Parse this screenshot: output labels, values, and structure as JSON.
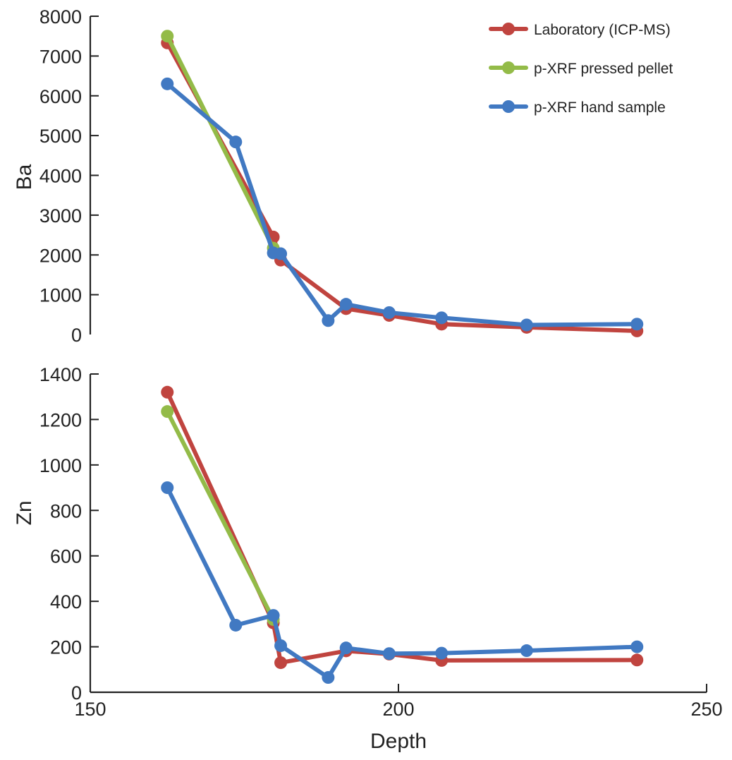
{
  "chart_data": {
    "type": "line",
    "xlabel": "Depth",
    "xlim": [
      150,
      250
    ],
    "xticks": [
      "150",
      "200",
      "250"
    ],
    "legend": {
      "placement": "top-right",
      "entries": [
        {
          "name": "Laboratory (ICP-MS)",
          "color": "#c0443f"
        },
        {
          "name": "p-XRF pressed pellet",
          "color": "#93bb48"
        },
        {
          "name": "p-XRF hand sample",
          "color": "#4179c2"
        }
      ]
    },
    "panels": [
      {
        "ylabel": "Ba",
        "ylim": [
          0,
          8000
        ],
        "yticks": [
          "0",
          "1000",
          "2000",
          "3000",
          "4000",
          "5000",
          "6000",
          "7000",
          "8000"
        ],
        "series": [
          {
            "name": "Laboratory (ICP-MS)",
            "color": "#c0443f",
            "x": [
              162.5,
              179.7,
              180.9,
              191.5,
              198.5,
              207.0,
              220.8,
              238.7
            ],
            "y": [
              7330,
              2450,
              1870,
              650,
              480,
              260,
              180,
              90
            ]
          },
          {
            "name": "p-XRF pressed pellet",
            "color": "#93bb48",
            "x": [
              162.5,
              179.7
            ],
            "y": [
              7500,
              2170
            ]
          },
          {
            "name": "p-XRF hand sample",
            "color": "#4179c2",
            "x": [
              162.5,
              173.6,
              179.7,
              180.9,
              188.6,
              191.5,
              198.5,
              207.0,
              220.8,
              238.7
            ],
            "y": [
              6300,
              4840,
              2050,
              2030,
              350,
              760,
              550,
              420,
              240,
              260
            ]
          }
        ]
      },
      {
        "ylabel": "Zn",
        "ylim": [
          0,
          1400
        ],
        "yticks": [
          "0",
          "200",
          "400",
          "600",
          "800",
          "1000",
          "1200",
          "1400"
        ],
        "series": [
          {
            "name": "Laboratory (ICP-MS)",
            "color": "#c0443f",
            "x": [
              162.5,
              179.7,
              180.9,
              191.5,
              198.5,
              207.0,
              238.7
            ],
            "y": [
              1320,
              305,
              130,
              182,
              168,
              140,
              142
            ]
          },
          {
            "name": "p-XRF pressed pellet",
            "color": "#93bb48",
            "x": [
              162.5,
              179.7
            ],
            "y": [
              1235,
              320
            ]
          },
          {
            "name": "p-XRF hand sample",
            "color": "#4179c2",
            "x": [
              162.5,
              173.6,
              179.7,
              180.9,
              188.6,
              191.5,
              198.5,
              207.0,
              220.8,
              238.7
            ],
            "y": [
              900,
              295,
              338,
              205,
              65,
              195,
              170,
              172,
              183,
              200
            ]
          }
        ]
      }
    ]
  }
}
